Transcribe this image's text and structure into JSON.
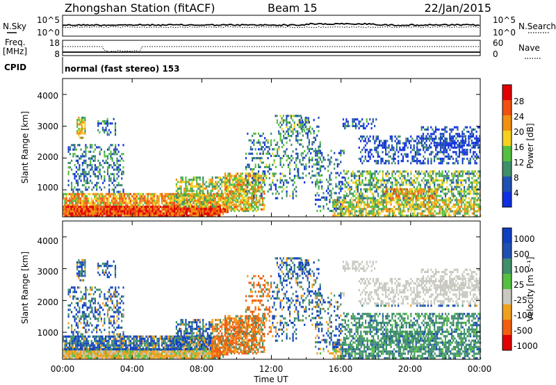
{
  "header": {
    "station": "Zhongshan Station (fitACF)",
    "beam": "Beam 15",
    "date": "22/Jan/2015"
  },
  "noise_panel": {
    "left_label": "N.Sky",
    "left_ticks": [
      "10^5",
      "10^0"
    ],
    "right_label": "N.Search",
    "right_ticks": [
      "10^5",
      "10^0"
    ]
  },
  "freq_panel": {
    "left_label_1": "Freq.",
    "left_label_2": "[MHz]",
    "left_ticks": [
      "18",
      "8"
    ],
    "right_label": "Nave",
    "right_ticks": [
      "60",
      "0"
    ]
  },
  "cpid_panel": {
    "label": "CPID",
    "text": "normal (fast stereo) 153"
  },
  "colors": {
    "power": [
      "#1030e0",
      "#2050b0",
      "#3f8f6a",
      "#55c040",
      "#f5d020",
      "#f09010",
      "#f05010",
      "#e00000"
    ],
    "velocity": [
      "#1040c0",
      "#2050b0",
      "#3f8f6a",
      "#55c040",
      "#c8c8c0",
      "#f0a020",
      "#f06010",
      "#e00000"
    ]
  },
  "chart_data": [
    {
      "type": "heatmap",
      "name": "power",
      "ylabel": "Slant Range [km]",
      "yticks": [
        "1000",
        "2000",
        "3000",
        "4000"
      ],
      "ylim": [
        150,
        4500
      ],
      "xlim": [
        0,
        24
      ],
      "xticks": [
        "00:00",
        "04:00",
        "08:00",
        "12:00",
        "16:00",
        "20:00",
        "00:00"
      ],
      "colorbar_label": "Power [dB]",
      "colorbar_ticks": [
        "4",
        "8",
        "12",
        "16",
        "20",
        "24",
        "28"
      ],
      "colorbar_range": [
        0,
        32
      ]
    },
    {
      "type": "heatmap",
      "name": "velocity",
      "ylabel": "Slant Range [km]",
      "yticks": [
        "1000",
        "2000",
        "3000",
        "4000"
      ],
      "ylim": [
        150,
        4500
      ],
      "xlim": [
        0,
        24
      ],
      "xticks": [
        "00:00",
        "04:00",
        "08:00",
        "12:00",
        "16:00",
        "20:00",
        "00:00"
      ],
      "xlabel": "Time UT",
      "colorbar_label": "Velocity [m s⁻¹]",
      "colorbar_ticks": [
        "1000",
        "500",
        "100",
        "25",
        "-25",
        "-100",
        "-500",
        "-1000"
      ]
    }
  ]
}
